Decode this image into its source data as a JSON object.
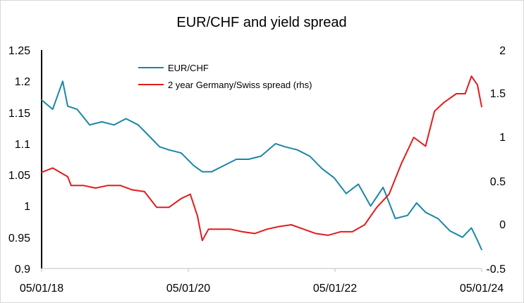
{
  "chart_data": {
    "type": "line",
    "title": "EUR/CHF and yield spread",
    "xlabel": "",
    "ylabel": "",
    "x_ticks": [
      "05/01/18",
      "05/01/20",
      "05/01/22",
      "05/01/24"
    ],
    "y_left": {
      "min": 0.9,
      "max": 1.25,
      "ticks": [
        "1.25",
        "1.2",
        "1.15",
        "1.1",
        "1.05",
        "1",
        "0.95",
        "0.9"
      ]
    },
    "y_right": {
      "min": -0.5,
      "max": 2,
      "ticks": [
        "2",
        "1.5",
        "1",
        "0.5",
        "0",
        "-0.5"
      ]
    },
    "legend_position": "top-center",
    "grid": false,
    "x_range": [
      "2018-01-05",
      "2024-01-05"
    ],
    "series": [
      {
        "name": "EUR/CHF",
        "axis": "left",
        "color": "#1b86a8",
        "x": [
          "2018-01-05",
          "2018-03-01",
          "2018-04-20",
          "2018-05-15",
          "2018-07-01",
          "2018-09-01",
          "2018-11-01",
          "2019-01-01",
          "2019-03-01",
          "2019-05-01",
          "2019-07-01",
          "2019-08-15",
          "2019-10-01",
          "2019-12-01",
          "2020-02-01",
          "2020-03-15",
          "2020-05-01",
          "2020-07-01",
          "2020-09-01",
          "2020-11-01",
          "2021-01-01",
          "2021-03-15",
          "2021-05-01",
          "2021-07-01",
          "2021-09-01",
          "2021-11-01",
          "2022-01-01",
          "2022-03-01",
          "2022-05-01",
          "2022-07-01",
          "2022-09-01",
          "2022-11-01",
          "2023-01-01",
          "2023-02-15",
          "2023-04-01",
          "2023-06-01",
          "2023-08-01",
          "2023-10-01",
          "2023-11-15",
          "2023-12-15",
          "2024-01-05"
        ],
        "y": [
          1.17,
          1.155,
          1.2,
          1.16,
          1.155,
          1.13,
          1.135,
          1.13,
          1.14,
          1.13,
          1.11,
          1.095,
          1.09,
          1.085,
          1.065,
          1.055,
          1.055,
          1.065,
          1.075,
          1.075,
          1.08,
          1.1,
          1.095,
          1.09,
          1.08,
          1.06,
          1.045,
          1.02,
          1.035,
          1.0,
          1.03,
          0.98,
          0.985,
          1.005,
          0.99,
          0.98,
          0.96,
          0.95,
          0.965,
          0.945,
          0.93
        ]
      },
      {
        "name": "2 year Germany/Swiss spread (rhs)",
        "axis": "right",
        "color": "#e11c1c",
        "x": [
          "2018-01-05",
          "2018-03-01",
          "2018-05-15",
          "2018-06-01",
          "2018-08-01",
          "2018-10-01",
          "2018-12-01",
          "2019-02-01",
          "2019-04-01",
          "2019-06-01",
          "2019-08-01",
          "2019-10-01",
          "2019-12-01",
          "2020-01-15",
          "2020-02-20",
          "2020-03-15",
          "2020-04-15",
          "2020-06-01",
          "2020-08-01",
          "2020-10-01",
          "2020-12-01",
          "2021-02-01",
          "2021-04-01",
          "2021-06-01",
          "2021-08-01",
          "2021-10-01",
          "2021-12-01",
          "2022-02-01",
          "2022-04-01",
          "2022-06-01",
          "2022-08-01",
          "2022-10-01",
          "2022-12-01",
          "2023-02-01",
          "2023-04-01",
          "2023-05-15",
          "2023-07-01",
          "2023-09-01",
          "2023-10-15",
          "2023-11-15",
          "2023-12-15",
          "2024-01-05"
        ],
        "y": [
          0.6,
          0.65,
          0.55,
          0.45,
          0.45,
          0.42,
          0.45,
          0.45,
          0.4,
          0.38,
          0.2,
          0.2,
          0.3,
          0.35,
          0.1,
          -0.18,
          -0.05,
          -0.05,
          -0.05,
          -0.08,
          -0.1,
          -0.05,
          -0.02,
          0.0,
          -0.05,
          -0.1,
          -0.12,
          -0.08,
          -0.08,
          0.0,
          0.2,
          0.35,
          0.7,
          1.0,
          0.9,
          1.3,
          1.4,
          1.5,
          1.5,
          1.7,
          1.6,
          1.35
        ]
      }
    ]
  }
}
